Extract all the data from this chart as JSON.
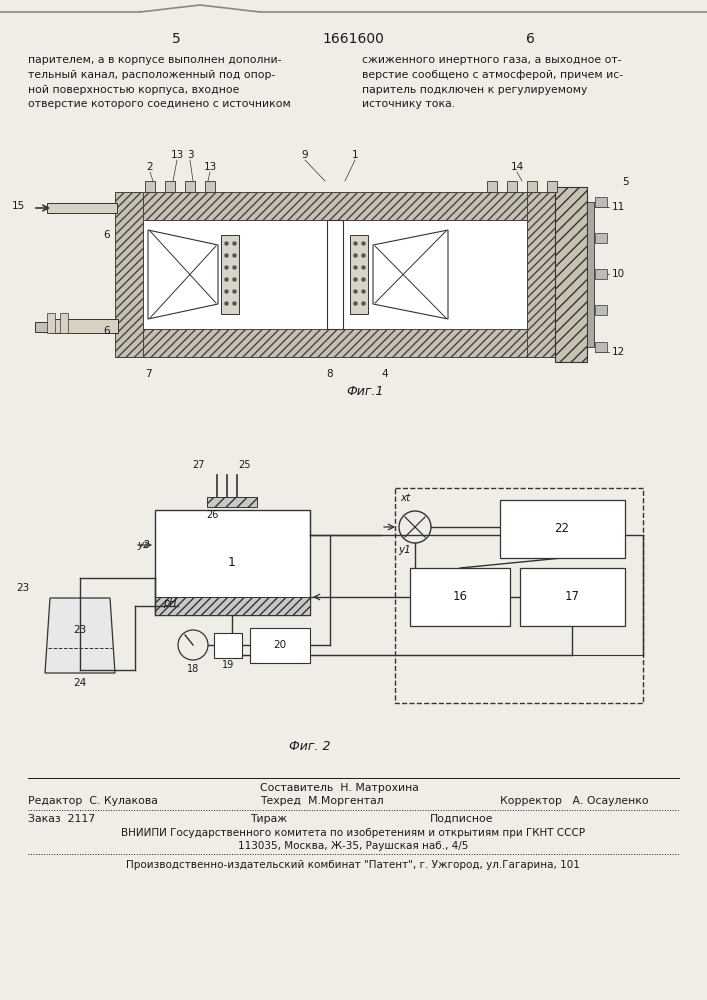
{
  "page_number_left": "5",
  "page_number_center": "1661600",
  "page_number_right": "6",
  "text_left": "парителем, а в корпусе выполнен дополни-\nтельный канал, расположенный под опор-\nной поверхностью корпуса, входное\nотверстие которого соединено с источником",
  "text_right": "сжиженного инертного газа, а выходное от-\nверстие сообщено с атмосферой, причем ис-\nпаритель подключен к регулируемому\nисточнику тока.",
  "fig1_caption": "Фиг.1",
  "fig2_caption": "Фиг. 2",
  "footer_composer": "Составитель  Н. Матрохина",
  "footer_editor": "Редактор  С. Кулакова",
  "footer_techred": "Техред  М.Моргентал",
  "footer_corrector": "Корректор   А. Осауленко",
  "footer_order": "Заказ  2117",
  "footer_tirazh": "Тираж",
  "footer_podpisnoe": "Подписное",
  "footer_vniip": "ВНИИПИ Государственного комитета по изобретениям и открытиям при ГКНТ СССР",
  "footer_address": "113035, Москва, Ж-35, Раушская наб., 4/5",
  "footer_factory": "Производственно-издательский комбинат \"Патент\", г. Ужгород, ул.Гагарина, 101",
  "bg_color": "#f0ede6",
  "text_color": "#1a1a1a",
  "hatch_color": "#555555",
  "line_color": "#2a2a2a"
}
